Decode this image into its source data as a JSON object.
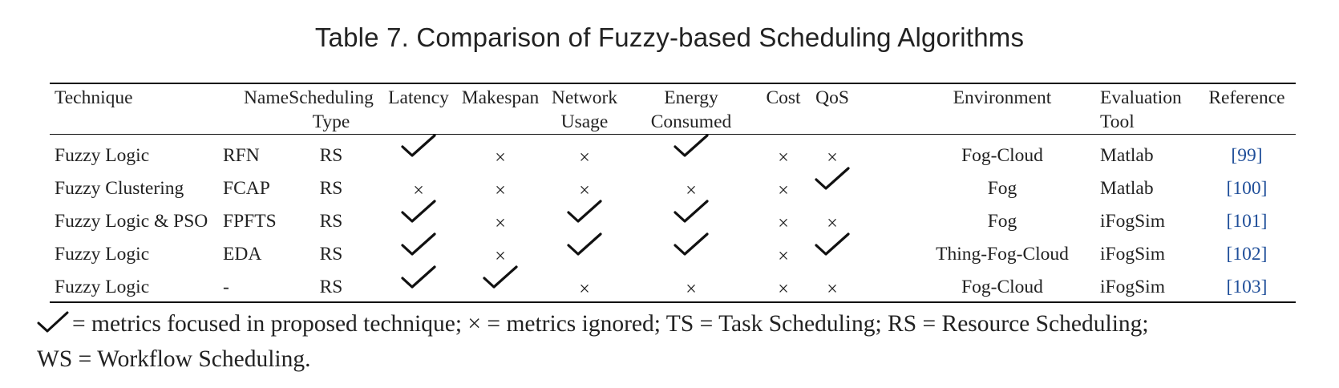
{
  "caption": "Table 7.  Comparison of Fuzzy-based Scheduling Algorithms",
  "headers": [
    {
      "line1": "Technique",
      "line2": ""
    },
    {
      "line1": "Name",
      "line2": ""
    },
    {
      "line1": "Scheduling",
      "line2": "Type"
    },
    {
      "line1": "Latency",
      "line2": ""
    },
    {
      "line1": "Makespan",
      "line2": ""
    },
    {
      "line1": "Network",
      "line2": "Usage"
    },
    {
      "line1": "Energy",
      "line2": "Consumed"
    },
    {
      "line1": "Cost",
      "line2": ""
    },
    {
      "line1": "QoS",
      "line2": ""
    },
    {
      "line1": "Environment",
      "line2": ""
    },
    {
      "line1": "Evaluation",
      "line2": "Tool"
    },
    {
      "line1": "Reference",
      "line2": ""
    }
  ],
  "rows": [
    {
      "technique": "Fuzzy Logic",
      "name": "RFN",
      "type": "RS",
      "latency": "check",
      "makespan": "cross",
      "network": "cross",
      "energy": "check",
      "cost": "cross",
      "qos": "cross",
      "environment": "Fog-Cloud",
      "tool": "Matlab",
      "reference": "[99]"
    },
    {
      "technique": "Fuzzy Clustering",
      "name": "FCAP",
      "type": "RS",
      "latency": "cross",
      "makespan": "cross",
      "network": "cross",
      "energy": "cross",
      "cost": "cross",
      "qos": "check",
      "environment": "Fog",
      "tool": "Matlab",
      "reference": "[100]"
    },
    {
      "technique": "Fuzzy Logic & PSO",
      "name": "FPFTS",
      "type": "RS",
      "latency": "check",
      "makespan": "cross",
      "network": "check",
      "energy": "check",
      "cost": "cross",
      "qos": "cross",
      "environment": "Fog",
      "tool": "iFogSim",
      "reference": "[101]"
    },
    {
      "technique": "Fuzzy Logic",
      "name": "EDA",
      "type": "RS",
      "latency": "check",
      "makespan": "cross",
      "network": "check",
      "energy": "check",
      "cost": "cross",
      "qos": "check",
      "environment": "Thing-Fog-Cloud",
      "tool": "iFogSim",
      "reference": "[102]"
    },
    {
      "technique": "Fuzzy Logic",
      "name": "-",
      "type": "RS",
      "latency": "check",
      "makespan": "check",
      "network": "cross",
      "energy": "cross",
      "cost": "cross",
      "qos": "cross",
      "environment": "Fog-Cloud",
      "tool": "iFogSim",
      "reference": "[103]"
    }
  ],
  "symbols": {
    "cross": "×",
    "check": "check-icon"
  },
  "legend": {
    "line1": "= metrics focused in proposed technique; × = metrics ignored; TS = Task Scheduling; RS = Resource Scheduling;",
    "line2": "WS = Workflow Scheduling."
  },
  "colors": {
    "reference_link": "#1f4e99"
  }
}
